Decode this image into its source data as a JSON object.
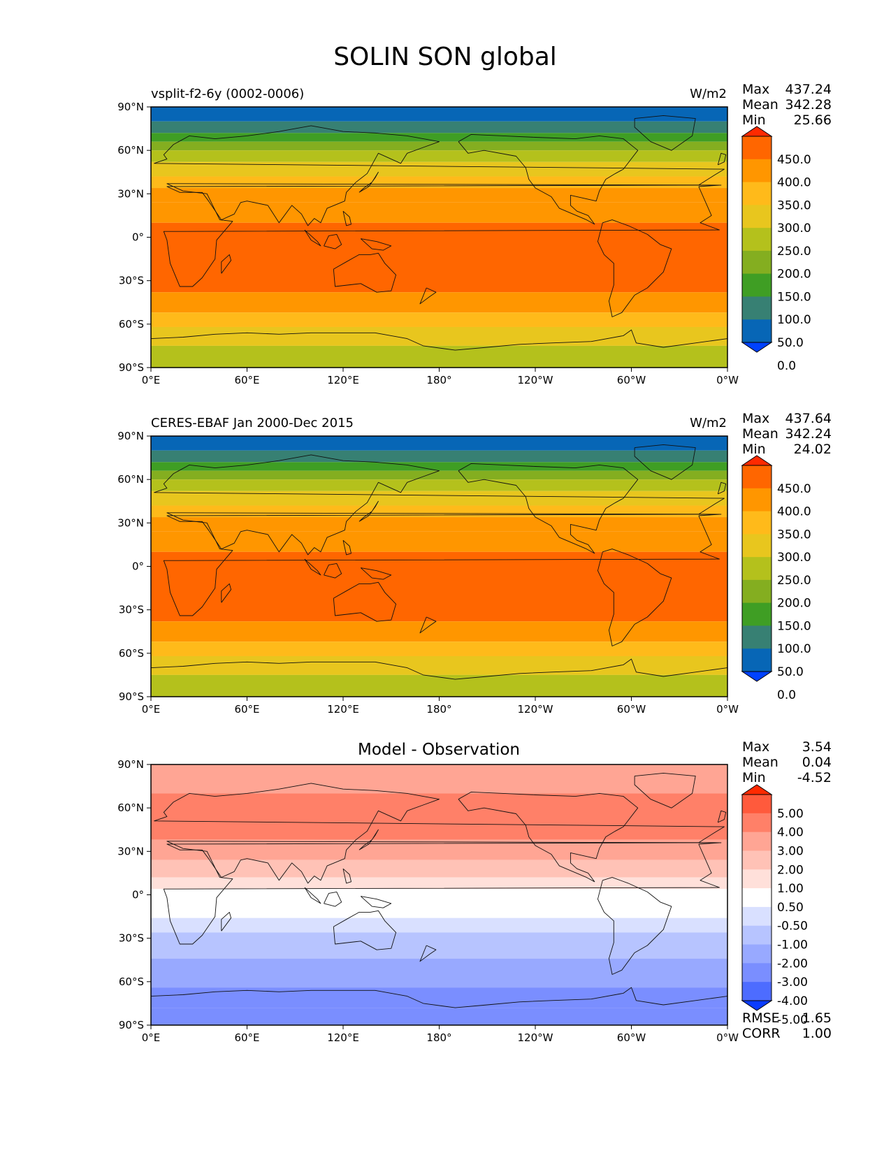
{
  "figure": {
    "title": "SOLIN SON global"
  },
  "chart_data": [
    {
      "type": "heatmap",
      "kind": "map",
      "title": "vsplit-f2-6y (0002-0006)",
      "units": "W/m2",
      "stats": {
        "max_label": "Max",
        "mean_label": "Mean",
        "min_label": "Min",
        "max": "437.24",
        "mean": "342.28",
        "min": "25.66"
      },
      "x_ticks": [
        "0°E",
        "60°E",
        "120°E",
        "180°",
        "120°W",
        "60°W",
        "0°W"
      ],
      "y_ticks": [
        "90°N",
        "60°N",
        "30°N",
        "0°",
        "30°S",
        "60°S",
        "90°S"
      ],
      "xlim": [
        0,
        360
      ],
      "ylim": [
        -90,
        90
      ],
      "colorbar": {
        "levels": [
          "450.0",
          "400.0",
          "350.0",
          "300.0",
          "250.0",
          "200.0",
          "150.0",
          "100.0",
          "50.0",
          "0.0"
        ],
        "colors": [
          "#ff2a00",
          "#ff6600",
          "#ff9600",
          "#ffba1a",
          "#e8c61e",
          "#b4c11c",
          "#84ae20",
          "#3f9e24",
          "#378073",
          "#0766b6",
          "#0042ff"
        ]
      },
      "bands": [
        {
          "lat_top": 90,
          "lat_bottom": 80,
          "value": 25
        },
        {
          "lat_top": 80,
          "lat_bottom": 72,
          "value": 75
        },
        {
          "lat_top": 72,
          "lat_bottom": 66,
          "value": 125
        },
        {
          "lat_top": 66,
          "lat_bottom": 60,
          "value": 175
        },
        {
          "lat_top": 60,
          "lat_bottom": 52,
          "value": 225
        },
        {
          "lat_top": 52,
          "lat_bottom": 42,
          "value": 275
        },
        {
          "lat_top": 42,
          "lat_bottom": 34,
          "value": 325
        },
        {
          "lat_top": 34,
          "lat_bottom": 24,
          "value": 375
        },
        {
          "lat_top": 24,
          "lat_bottom": 10,
          "value": 375
        },
        {
          "lat_top": 10,
          "lat_bottom": -38,
          "value": 425
        },
        {
          "lat_top": -38,
          "lat_bottom": -52,
          "value": 375
        },
        {
          "lat_top": -52,
          "lat_bottom": -62,
          "value": 325
        },
        {
          "lat_top": -62,
          "lat_bottom": -75,
          "value": 275
        },
        {
          "lat_top": -75,
          "lat_bottom": -90,
          "value": 225
        }
      ]
    },
    {
      "type": "heatmap",
      "kind": "map",
      "title": "CERES-EBAF Jan 2000-Dec 2015",
      "units": "W/m2",
      "stats": {
        "max_label": "Max",
        "mean_label": "Mean",
        "min_label": "Min",
        "max": "437.64",
        "mean": "342.24",
        "min": "24.02"
      },
      "x_ticks": [
        "0°E",
        "60°E",
        "120°E",
        "180°",
        "120°W",
        "60°W",
        "0°W"
      ],
      "y_ticks": [
        "90°N",
        "60°N",
        "30°N",
        "0°",
        "30°S",
        "60°S",
        "90°S"
      ],
      "xlim": [
        0,
        360
      ],
      "ylim": [
        -90,
        90
      ],
      "colorbar": {
        "levels": [
          "450.0",
          "400.0",
          "350.0",
          "300.0",
          "250.0",
          "200.0",
          "150.0",
          "100.0",
          "50.0",
          "0.0"
        ],
        "colors": [
          "#ff2a00",
          "#ff6600",
          "#ff9600",
          "#ffba1a",
          "#e8c61e",
          "#b4c11c",
          "#84ae20",
          "#3f9e24",
          "#378073",
          "#0766b6",
          "#0042ff"
        ]
      },
      "bands": [
        {
          "lat_top": 90,
          "lat_bottom": 80,
          "value": 25
        },
        {
          "lat_top": 80,
          "lat_bottom": 72,
          "value": 75
        },
        {
          "lat_top": 72,
          "lat_bottom": 66,
          "value": 125
        },
        {
          "lat_top": 66,
          "lat_bottom": 60,
          "value": 175
        },
        {
          "lat_top": 60,
          "lat_bottom": 52,
          "value": 225
        },
        {
          "lat_top": 52,
          "lat_bottom": 42,
          "value": 275
        },
        {
          "lat_top": 42,
          "lat_bottom": 34,
          "value": 325
        },
        {
          "lat_top": 34,
          "lat_bottom": 24,
          "value": 375
        },
        {
          "lat_top": 24,
          "lat_bottom": 10,
          "value": 375
        },
        {
          "lat_top": 10,
          "lat_bottom": -38,
          "value": 425
        },
        {
          "lat_top": -38,
          "lat_bottom": -52,
          "value": 375
        },
        {
          "lat_top": -52,
          "lat_bottom": -62,
          "value": 325
        },
        {
          "lat_top": -62,
          "lat_bottom": -75,
          "value": 275
        },
        {
          "lat_top": -75,
          "lat_bottom": -90,
          "value": 225
        }
      ]
    },
    {
      "type": "heatmap",
      "kind": "map",
      "title": "Model - Observation",
      "units": "",
      "stats": {
        "max_label": "Max",
        "mean_label": "Mean",
        "min_label": "Min",
        "max": "3.54",
        "mean": "0.04",
        "min": "-4.52"
      },
      "extra_stats": [
        {
          "label": "RMSE",
          "value": "1.65"
        },
        {
          "label": "CORR",
          "value": "1.00"
        }
      ],
      "x_ticks": [
        "0°E",
        "60°E",
        "120°E",
        "180°",
        "120°W",
        "60°W",
        "0°W"
      ],
      "y_ticks": [
        "90°N",
        "60°N",
        "30°N",
        "0°",
        "30°S",
        "60°S",
        "90°S"
      ],
      "xlim": [
        0,
        360
      ],
      "ylim": [
        -90,
        90
      ],
      "colorbar": {
        "levels": [
          "5.00",
          "4.00",
          "3.00",
          "2.00",
          "1.00",
          "0.50",
          "-0.50",
          "-1.00",
          "-2.00",
          "-3.00",
          "-4.00",
          "-5.00"
        ],
        "colors": [
          "#ff2a00",
          "#ff5a3c",
          "#ff8068",
          "#ffa594",
          "#ffc2b6",
          "#ffe0da",
          "#ffffff",
          "#d9e0ff",
          "#b7c4ff",
          "#98a9ff",
          "#7a8eff",
          "#4d6cff",
          "#0a3cff"
        ]
      },
      "bands": [
        {
          "lat_top": 90,
          "lat_bottom": 70,
          "value": 2.5
        },
        {
          "lat_top": 70,
          "lat_bottom": 38,
          "value": 3.5
        },
        {
          "lat_top": 38,
          "lat_bottom": 24,
          "value": 2.5
        },
        {
          "lat_top": 24,
          "lat_bottom": 12,
          "value": 1.5
        },
        {
          "lat_top": 12,
          "lat_bottom": 4,
          "value": 0.75
        },
        {
          "lat_top": 4,
          "lat_bottom": -16,
          "value": 0.0
        },
        {
          "lat_top": -16,
          "lat_bottom": -26,
          "value": -0.75
        },
        {
          "lat_top": -26,
          "lat_bottom": -44,
          "value": -1.5
        },
        {
          "lat_top": -44,
          "lat_bottom": -64,
          "value": -2.5
        },
        {
          "lat_top": -64,
          "lat_bottom": -78,
          "value": -3.5
        },
        {
          "lat_top": -78,
          "lat_bottom": -90,
          "value": -3.5
        }
      ]
    }
  ]
}
